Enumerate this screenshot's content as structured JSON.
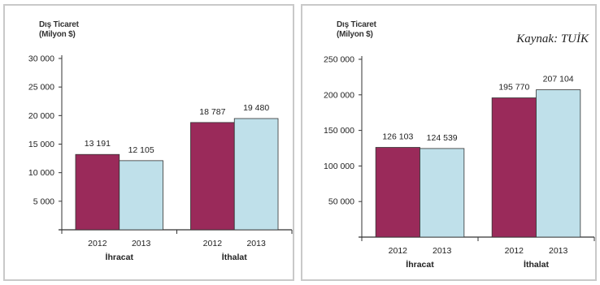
{
  "colors": {
    "bar2012": "#9a2a5a",
    "bar2013": "#bfe0ea",
    "stroke": "#333333"
  },
  "source": "Kaynak: TUİK",
  "chart_data": [
    {
      "type": "bar",
      "ytitle_line1": "Dış Ticaret",
      "ytitle_line2": "(Milyon $)",
      "groups": [
        "İhracat",
        "İthalat"
      ],
      "series": [
        {
          "name": "2012",
          "values": [
            13191,
            18787
          ],
          "labels": [
            "13 191",
            "18 787"
          ]
        },
        {
          "name": "2013",
          "values": [
            12105,
            19480
          ],
          "labels": [
            "12 105",
            "19 480"
          ]
        }
      ],
      "ylim": [
        0,
        30000
      ],
      "yticks": [
        5000,
        10000,
        15000,
        20000,
        25000,
        30000
      ],
      "yticklabels": [
        "5 000",
        "10 000",
        "15 000",
        "20 000",
        "25 000",
        "30 000"
      ]
    },
    {
      "type": "bar",
      "ytitle_line1": "Dış Ticaret",
      "ytitle_line2": "(Milyon $)",
      "groups": [
        "İhracat",
        "İthalat"
      ],
      "series": [
        {
          "name": "2012",
          "values": [
            126103,
            195770
          ],
          "labels": [
            "126 103",
            "195 770"
          ]
        },
        {
          "name": "2013",
          "values": [
            124539,
            207104
          ],
          "labels": [
            "124 539",
            "207 104"
          ]
        }
      ],
      "ylim": [
        0,
        250000
      ],
      "yticks": [
        50000,
        100000,
        150000,
        200000,
        250000
      ],
      "yticklabels": [
        "50 000",
        "100 000",
        "150 000",
        "200 000",
        "250 000"
      ]
    }
  ]
}
